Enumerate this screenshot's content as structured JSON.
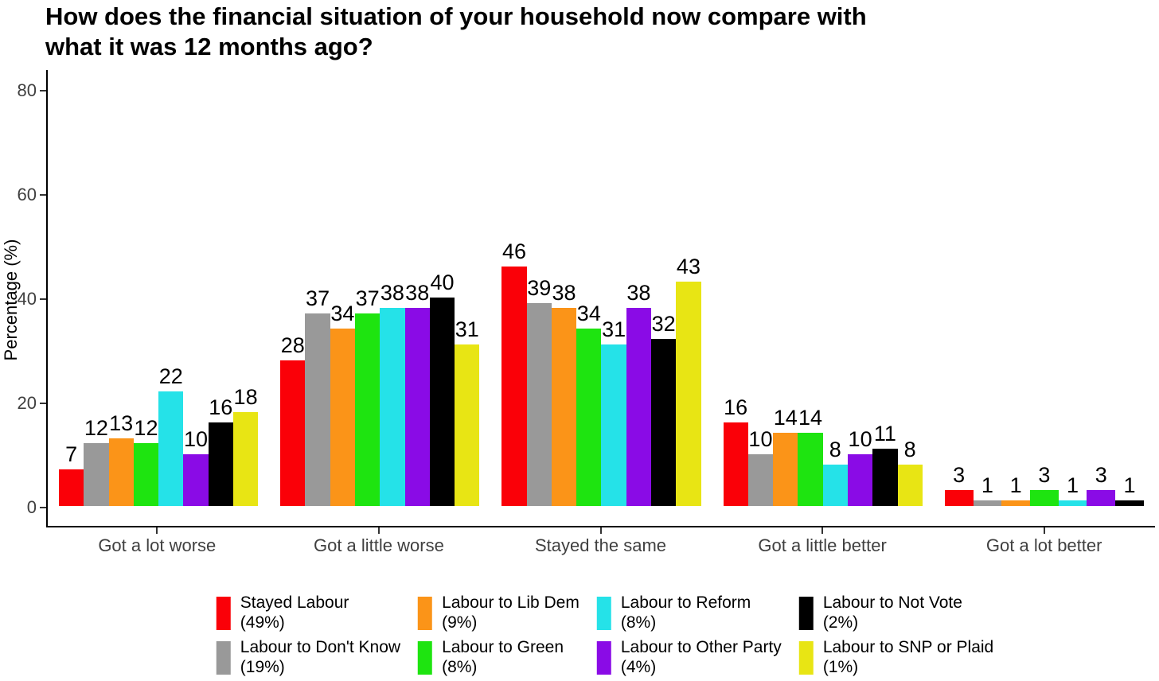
{
  "title": "How does the financial situation of your household now compare with\nwhat it was 12 months ago?",
  "chart_data": {
    "type": "bar",
    "title": "How does the financial situation of your household now compare with what it was 12 months ago?",
    "xlabel": "",
    "ylabel": "Percentage (%)",
    "ylim": [
      0,
      84
    ],
    "yticks": [
      0,
      20,
      40,
      60,
      80
    ],
    "grid": false,
    "legend_position": "bottom",
    "bar_value_labels": true,
    "categories": [
      "Got a lot worse",
      "Got a little worse",
      "Stayed the same",
      "Got a little better",
      "Got a lot better"
    ],
    "series": [
      {
        "name": "Stayed Labour",
        "share": "(49%)",
        "color": "#FA0008",
        "values": [
          7,
          28,
          46,
          16,
          3
        ]
      },
      {
        "name": "Labour to Don't Know",
        "share": "(19%)",
        "color": "#999999",
        "values": [
          12,
          37,
          39,
          10,
          1
        ]
      },
      {
        "name": "Labour to Lib Dem",
        "share": "(9%)",
        "color": "#FB9418",
        "values": [
          13,
          34,
          38,
          14,
          1
        ]
      },
      {
        "name": "Labour to Green",
        "share": "(8%)",
        "color": "#1EE410",
        "values": [
          12,
          37,
          34,
          14,
          3
        ]
      },
      {
        "name": "Labour to Reform",
        "share": "(8%)",
        "color": "#25E2E8",
        "values": [
          22,
          38,
          31,
          8,
          1
        ]
      },
      {
        "name": "Labour to Other Party",
        "share": "(4%)",
        "color": "#8A0BE6",
        "values": [
          10,
          38,
          38,
          10,
          3
        ]
      },
      {
        "name": "Labour to Not Vote",
        "share": "(2%)",
        "color": "#000000",
        "values": [
          16,
          40,
          32,
          11,
          1
        ]
      },
      {
        "name": "Labour to SNP or Plaid",
        "share": "(1%)",
        "color": "#E8E514",
        "values": [
          18,
          31,
          43,
          8,
          null
        ]
      }
    ]
  }
}
